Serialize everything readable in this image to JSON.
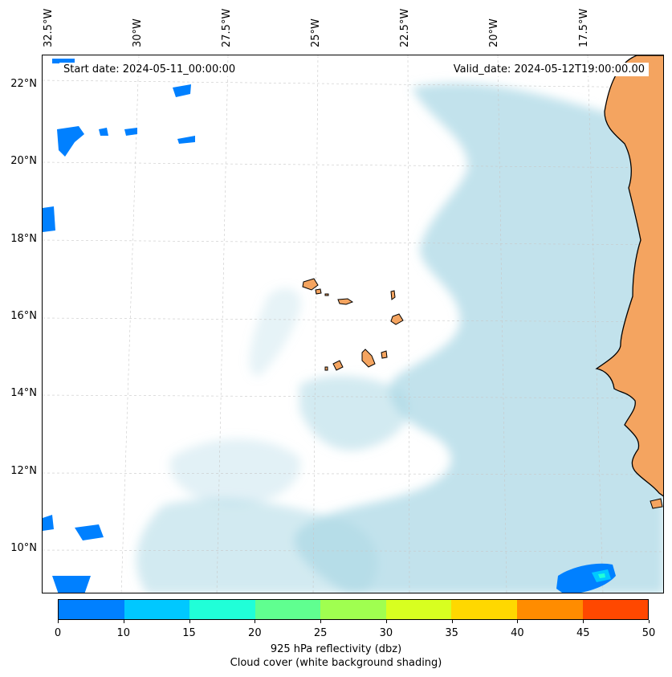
{
  "map": {
    "lon_labels": [
      "32.5°W",
      "30°W",
      "27.5°W",
      "25°W",
      "22.5°W",
      "20°W",
      "17.5°W"
    ],
    "lat_labels": [
      "22°N",
      "20°N",
      "18°N",
      "16°N",
      "14°N",
      "12°N",
      "10°N"
    ],
    "start_date": "Start date: 2024-05-11_00:00:00",
    "valid_date": "Valid_date: 2024-05-12T19:00:00.00",
    "colors": {
      "land": "#f4a460",
      "cloud": "#add8e6",
      "reflectivity_low": "#0080ff",
      "reflectivity_mid": "#00c8ff",
      "reflectivity_peak": "#20ffd8",
      "grid": "#c8c8c8",
      "coastline": "#000000"
    }
  },
  "colorbar": {
    "ticks": [
      "0",
      "10",
      "15",
      "20",
      "25",
      "30",
      "35",
      "40",
      "45",
      "50"
    ],
    "colors": [
      "#0080ff",
      "#00c8ff",
      "#20ffd8",
      "#60ff90",
      "#a0ff50",
      "#d8ff20",
      "#ffd800",
      "#ff8c00",
      "#ff4800"
    ],
    "label_line1": "925 hPa reflectivity (dbz)",
    "label_line2": "Cloud cover (white background shading)"
  }
}
